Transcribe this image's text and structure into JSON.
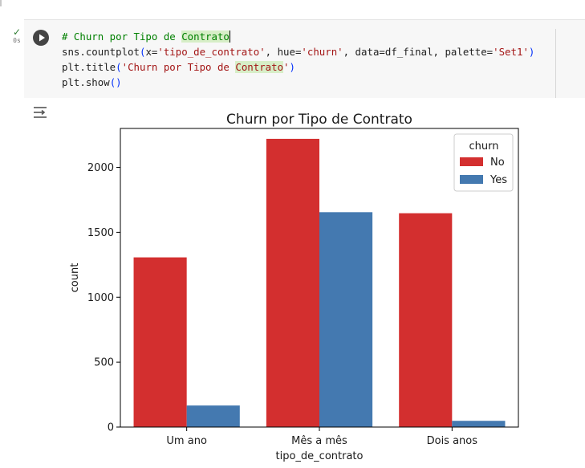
{
  "cell": {
    "exec_check": "✓",
    "exec_time": "0s",
    "code_lines": [
      "# Churn por Tipo de Contrato",
      "sns.countplot(x='tipo_de_contrato', hue='churn', data=df_final, palette='Set1')",
      "plt.title('Churn por Tipo de Contrato')",
      "plt.show()"
    ]
  },
  "colors": {
    "no": "#d32f2f",
    "yes": "#4479b0",
    "comment": "#008000",
    "string": "#a31515",
    "bracket": "#0431fa"
  },
  "chart_data": {
    "type": "bar",
    "title": "Churn por Tipo de Contrato",
    "xlabel": "tipo_de_contrato",
    "ylabel": "count",
    "categories": [
      "Um ano",
      "Mês a mês",
      "Dois anos"
    ],
    "series": [
      {
        "name": "No",
        "values": [
          1307,
          2220,
          1647
        ]
      },
      {
        "name": "Yes",
        "values": [
          166,
          1655,
          48
        ]
      }
    ],
    "ylim": [
      0,
      2300
    ],
    "yticks": [
      "0",
      "500",
      "1000",
      "1500",
      "2000"
    ],
    "legend_title": "churn",
    "legend_position": "top-right",
    "grid": false
  }
}
